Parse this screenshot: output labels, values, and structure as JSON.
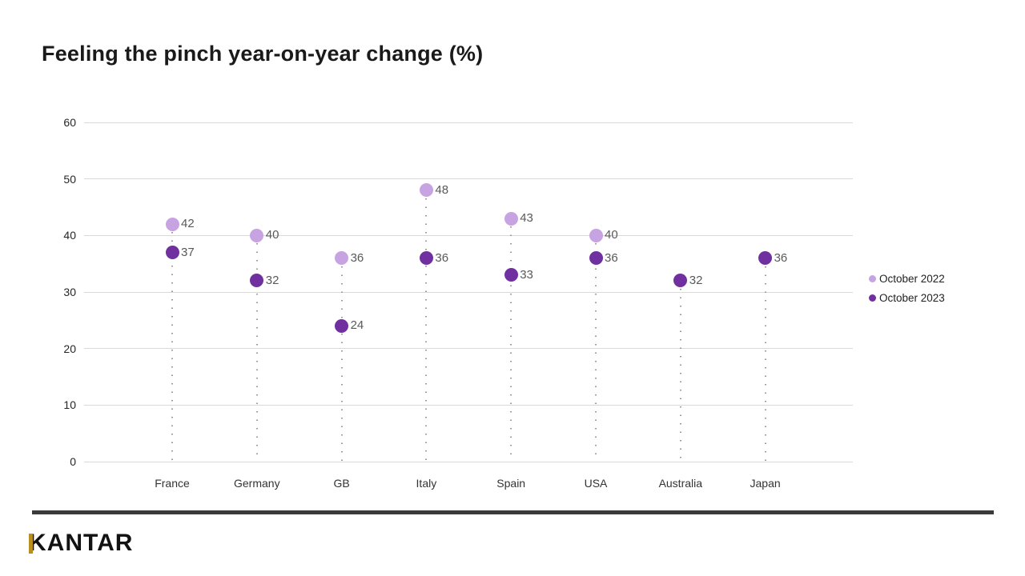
{
  "title": "Feeling the pinch year-on-year change (%)",
  "chart_data": {
    "type": "scatter",
    "categories": [
      "France",
      "Germany",
      "GB",
      "Italy",
      "Spain",
      "USA",
      "Australia",
      "Japan"
    ],
    "series": [
      {
        "name": "October 2022",
        "color": "#c7a3e2",
        "values": [
          42,
          40,
          36,
          48,
          43,
          40,
          null,
          null
        ]
      },
      {
        "name": "October 2023",
        "color": "#7030a0",
        "values": [
          37,
          32,
          24,
          36,
          33,
          36,
          32,
          36
        ]
      }
    ],
    "ylim": [
      0,
      60
    ],
    "yticks": [
      0,
      10,
      20,
      30,
      40,
      50,
      60
    ],
    "grid": "horizontal",
    "legend_position": "right",
    "value_label_color": "#595959",
    "gridline_color": "#d9d9d9"
  },
  "footer": {
    "logo_text": "KANTAR",
    "divider_color": "#3a3a3a",
    "logo_accent_color": "#b9901e"
  }
}
